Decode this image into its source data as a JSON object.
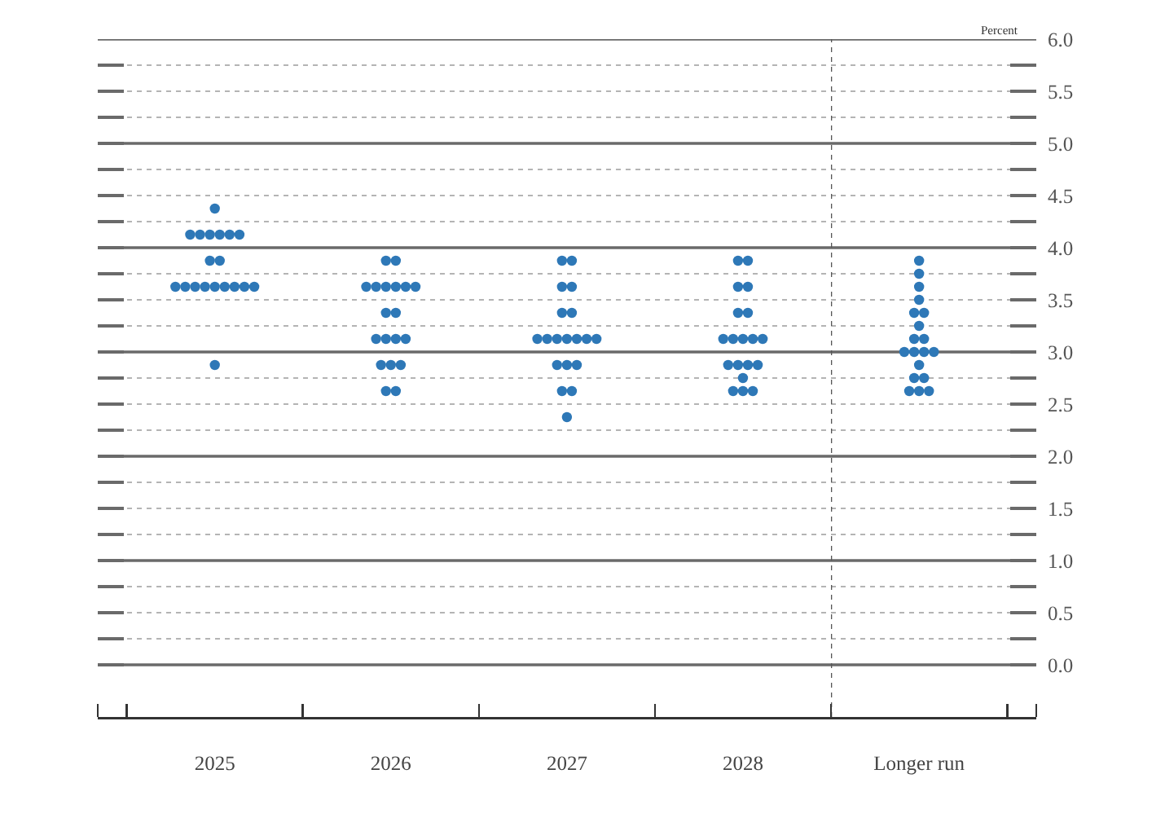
{
  "chart_data": [
    {
      "type": "scatter",
      "categories": [
        "2025",
        "2026",
        "2027",
        "2028"
      ],
      "series": [
        {
          "color": "#2e78b7",
          "values": [
            4.375,
            3.875,
            3.875,
            3.875
          ]
        },
        {
          "color": "#2e78b7",
          "values": [
            4.125,
            3.875,
            3.875,
            3.875
          ]
        },
        {
          "color": "#2e78b7",
          "values": [
            4.125,
            3.625,
            3.625,
            3.625
          ]
        },
        {
          "color": "#2e78b7",
          "values": [
            4.125,
            3.625,
            3.625,
            3.625
          ]
        },
        {
          "color": "#2e78b7",
          "values": [
            4.125,
            3.625,
            3.375,
            3.375
          ]
        },
        {
          "color": "#2e78b7",
          "values": [
            4.125,
            3.625,
            3.375,
            3.375
          ]
        },
        {
          "color": "#2e78b7",
          "values": [
            4.125,
            3.625,
            3.125,
            3.125
          ]
        },
        {
          "color": "#2e78b7",
          "values": [
            3.875,
            3.625,
            3.125,
            3.125
          ]
        },
        {
          "color": "#2e78b7",
          "values": [
            3.875,
            3.375,
            3.125,
            3.125
          ]
        },
        {
          "color": "#2e78b7",
          "values": [
            3.625,
            3.375,
            3.125,
            3.125
          ]
        },
        {
          "color": "#2e78b7",
          "values": [
            3.625,
            3.125,
            3.125,
            3.125
          ]
        },
        {
          "color": "#2e78b7",
          "values": [
            3.625,
            3.125,
            3.125,
            2.875
          ]
        },
        {
          "color": "#2e78b7",
          "values": [
            3.625,
            3.125,
            3.125,
            2.875
          ]
        },
        {
          "color": "#2e78b7",
          "values": [
            3.625,
            3.125,
            2.875,
            2.875
          ]
        },
        {
          "color": "#2e78b7",
          "values": [
            3.625,
            2.875,
            2.875,
            2.875
          ]
        },
        {
          "color": "#2e78b7",
          "values": [
            3.625,
            2.875,
            2.875,
            2.75
          ]
        },
        {
          "color": "#2e78b7",
          "values": [
            3.625,
            2.875,
            2.625,
            2.625
          ]
        },
        {
          "color": "#2e78b7",
          "values": [
            3.625,
            2.625,
            2.625,
            2.625
          ]
        },
        {
          "color": "#2e78b7",
          "values": [
            2.875,
            2.625,
            2.375,
            2.625
          ]
        }
      ],
      "ylim": [
        -0.5,
        6.0
      ],
      "yticks": [
        {
          "value": 0,
          "label": null
        },
        {
          "value": 0.25,
          "label": null
        },
        {
          "value": 0.5,
          "label": null
        },
        {
          "value": 0.75,
          "label": null
        },
        {
          "value": 1,
          "label": null
        },
        {
          "value": 1.25,
          "label": null
        },
        {
          "value": 1.5,
          "label": null
        },
        {
          "value": 1.75,
          "label": null
        },
        {
          "value": 2,
          "label": null
        },
        {
          "value": 2.25,
          "label": null
        },
        {
          "value": 2.5,
          "label": null
        },
        {
          "value": 2.75,
          "label": null
        },
        {
          "value": 3,
          "label": null
        },
        {
          "value": 3.25,
          "label": null
        },
        {
          "value": 3.5,
          "label": null
        },
        {
          "value": 3.75,
          "label": null
        },
        {
          "value": 4,
          "label": null
        },
        {
          "value": 4.25,
          "label": null
        },
        {
          "value": 4.5,
          "label": null
        },
        {
          "value": 4.75,
          "label": null
        },
        {
          "value": 5,
          "label": null
        },
        {
          "value": 5.25,
          "label": null
        },
        {
          "value": 5.5,
          "label": null
        },
        {
          "value": 5.75,
          "label": null
        },
        {
          "value": 6,
          "label": null
        }
      ],
      "grid": "y",
      "marker": "circle",
      "tick_labels": "x"
    },
    {
      "type": "scatter",
      "categories": [
        "Longer run"
      ],
      "series": [
        {
          "color": "#2e78b7",
          "values": [
            3.875
          ]
        },
        {
          "color": "#2e78b7",
          "values": [
            3.75
          ]
        },
        {
          "color": "#2e78b7",
          "values": [
            3.625
          ]
        },
        {
          "color": "#2e78b7",
          "values": [
            3.5
          ]
        },
        {
          "color": "#2e78b7",
          "values": [
            3.375
          ]
        },
        {
          "color": "#2e78b7",
          "values": [
            3.375
          ]
        },
        {
          "color": "#2e78b7",
          "values": [
            3.25
          ]
        },
        {
          "color": "#2e78b7",
          "values": [
            3.125
          ]
        },
        {
          "color": "#2e78b7",
          "values": [
            3.125
          ]
        },
        {
          "color": "#2e78b7",
          "values": [
            3.0
          ]
        },
        {
          "color": "#2e78b7",
          "values": [
            3.0
          ]
        },
        {
          "color": "#2e78b7",
          "values": [
            3.0
          ]
        },
        {
          "color": "#2e78b7",
          "values": [
            3.0
          ]
        },
        {
          "color": "#2e78b7",
          "values": [
            2.875
          ]
        },
        {
          "color": "#2e78b7",
          "values": [
            2.75
          ]
        },
        {
          "color": "#2e78b7",
          "values": [
            2.75
          ]
        },
        {
          "color": "#2e78b7",
          "values": [
            2.625
          ]
        },
        {
          "color": "#2e78b7",
          "values": [
            2.625
          ]
        },
        {
          "color": "#2e78b7",
          "values": [
            2.625
          ]
        }
      ],
      "ylabel": "Percent",
      "ylim": [
        -0.5,
        6.0
      ],
      "yticks": [
        {
          "value": 0,
          "label": "0.0"
        },
        {
          "value": 0.25,
          "label": null
        },
        {
          "value": 0.5,
          "label": "0.5"
        },
        {
          "value": 0.75,
          "label": null
        },
        {
          "value": 1,
          "label": "1.0"
        },
        {
          "value": 1.25,
          "label": null
        },
        {
          "value": 1.5,
          "label": "1.5"
        },
        {
          "value": 1.75,
          "label": null
        },
        {
          "value": 2,
          "label": "2.0"
        },
        {
          "value": 2.25,
          "label": null
        },
        {
          "value": 2.5,
          "label": "2.5"
        },
        {
          "value": 2.75,
          "label": null
        },
        {
          "value": 3,
          "label": "3.0"
        },
        {
          "value": 3.25,
          "label": null
        },
        {
          "value": 3.5,
          "label": "3.5"
        },
        {
          "value": 3.75,
          "label": null
        },
        {
          "value": 4,
          "label": "4.0"
        },
        {
          "value": 4.25,
          "label": null
        },
        {
          "value": 4.5,
          "label": "4.5"
        },
        {
          "value": 4.75,
          "label": null
        },
        {
          "value": 5,
          "label": "5.0"
        },
        {
          "value": 5.25,
          "label": null
        },
        {
          "value": 5.5,
          "label": "5.5"
        },
        {
          "value": 5.75,
          "label": null
        },
        {
          "value": 6,
          "label": "6.0"
        }
      ],
      "grid": "y",
      "marker": "circle"
    }
  ]
}
